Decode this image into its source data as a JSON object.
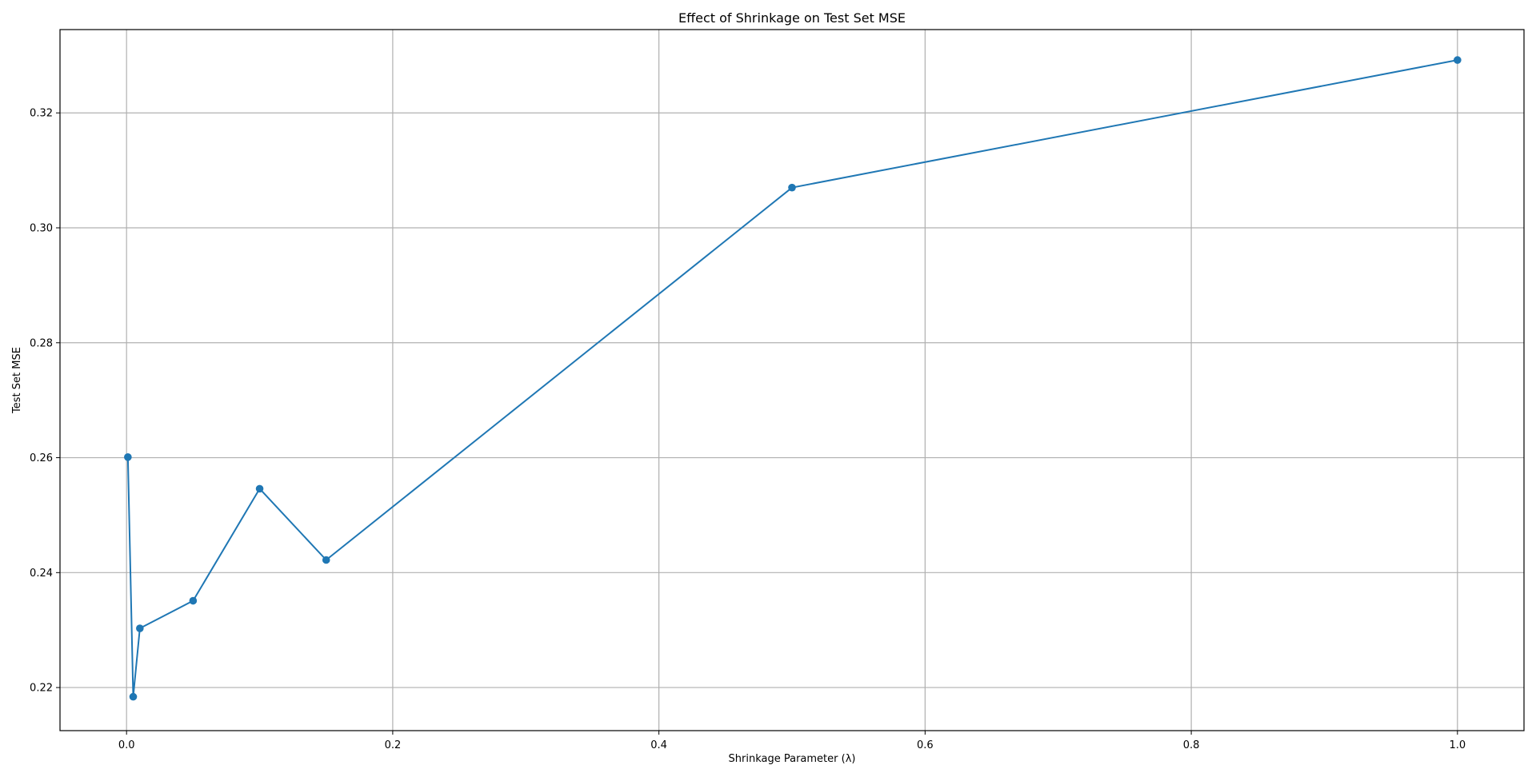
{
  "chart_data": {
    "type": "line",
    "title": "Effect of Shrinkage on Test Set MSE",
    "xlabel": "Shrinkage Parameter (λ)",
    "ylabel": "Test Set MSE",
    "xlim": [
      -0.05,
      1.05
    ],
    "ylim": [
      0.2125,
      0.3345
    ],
    "x_ticks": [
      0.0,
      0.2,
      0.4,
      0.6,
      0.8,
      1.0
    ],
    "x_tick_labels": [
      "0.0",
      "0.2",
      "0.4",
      "0.6",
      "0.8",
      "1.0"
    ],
    "y_ticks": [
      0.22,
      0.24,
      0.26,
      0.28,
      0.3,
      0.32
    ],
    "y_tick_labels": [
      "0.22",
      "0.24",
      "0.26",
      "0.28",
      "0.30",
      "0.32"
    ],
    "grid": true,
    "series": [
      {
        "color": "#1f77b4",
        "marker": "circle",
        "x": [
          0.001,
          0.005,
          0.01,
          0.05,
          0.1,
          0.15,
          0.5,
          1.0
        ],
        "y": [
          0.2601,
          0.2184,
          0.2303,
          0.2351,
          0.2546,
          0.2422,
          0.307,
          0.3292
        ]
      }
    ]
  }
}
